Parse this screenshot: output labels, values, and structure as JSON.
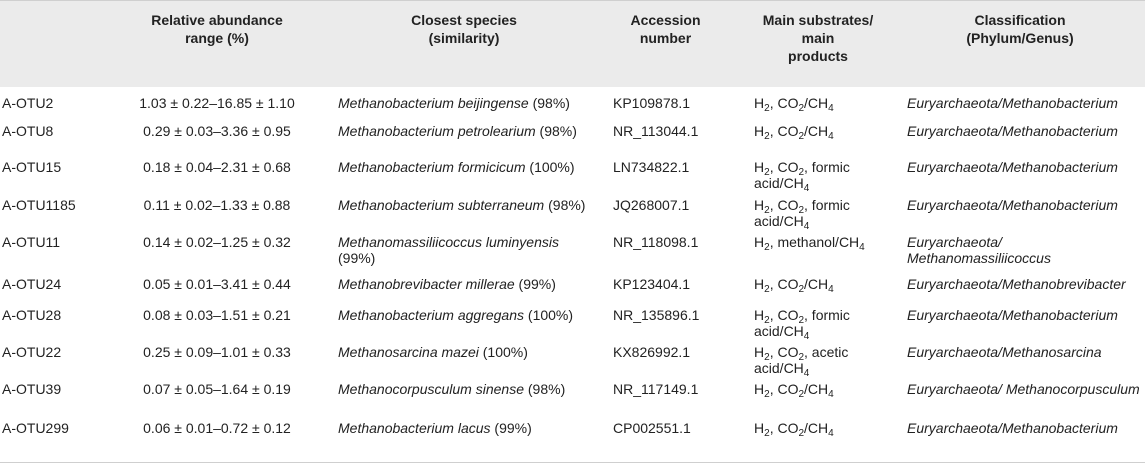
{
  "headers": [
    {
      "key": "range",
      "lines": [
        "Relative abundance",
        "range (%)"
      ]
    },
    {
      "key": "species",
      "lines": [
        "Closest species",
        "(similarity)"
      ]
    },
    {
      "key": "accession",
      "lines": [
        "Accession",
        "number"
      ]
    },
    {
      "key": "substrates",
      "lines": [
        "Main substrates/",
        "main",
        "products"
      ]
    },
    {
      "key": "classification",
      "lines": [
        "Classification",
        "(Phylum/Genus)"
      ]
    }
  ],
  "rows": [
    {
      "otu": "A-OTU2",
      "range": "1.03 ± 0.22–16.85 ± 1.10",
      "species": "Methanobacterium beijingense",
      "similarity": "(98%)",
      "accession": "KP109878.1",
      "substrates": "H₂, CO₂/CH₄",
      "classification": "Euryarchaeota/Methanobacterium"
    },
    {
      "otu": "A-OTU8",
      "range": "0.29 ± 0.03–3.36 ± 0.95",
      "species": "Methanobacterium petrolearium",
      "similarity": "(98%)",
      "accession": "NR_113044.1",
      "substrates": "H₂, CO₂/CH₄",
      "classification": "Euryarchaeota/Methanobacterium"
    },
    {
      "otu": "A-OTU15",
      "range": "0.18 ± 0.04–2.31 ± 0.68",
      "species": "Methanobacterium formicicum",
      "similarity": "(100%)",
      "accession": "LN734822.1",
      "substrates": "H₂, CO₂, formic acid/CH₄",
      "classification": "Euryarchaeota/Methanobacterium"
    },
    {
      "otu": "A-OTU1185",
      "range": "0.11 ± 0.02–1.33 ± 0.88",
      "species": "Methanobacterium subterraneum",
      "similarity": "(98%)",
      "accession": "JQ268007.1",
      "substrates": "H₂, CO₂, formic acid/CH₄",
      "classification": "Euryarchaeota/Methanobacterium"
    },
    {
      "otu": "A-OTU11",
      "range": "0.14 ± 0.02–1.25 ± 0.32",
      "species": "Methanomassiliicoccus luminyensis",
      "similarity": "(99%)",
      "accession": "NR_118098.1",
      "substrates": "H₂, methanol/CH₄",
      "classification": "Euryarchaeota/ Methanomassiliicoccus"
    },
    {
      "otu": "A-OTU24",
      "range": "0.05 ± 0.01–3.41 ± 0.44",
      "species": "Methanobrevibacter millerae",
      "similarity": "(99%)",
      "accession": "KP123404.1",
      "substrates": "H₂, CO₂/CH₄",
      "classification": "Euryarchaeota/Methanobrevibacter"
    },
    {
      "otu": "A-OTU28",
      "range": "0.08 ± 0.03–1.51 ± 0.21",
      "species": "Methanobacterium aggregans",
      "similarity": "(100%)",
      "accession": "NR_135896.1",
      "substrates": "H₂, CO₂, formic acid/CH₄",
      "classification": "Euryarchaeota/Methanobacterium"
    },
    {
      "otu": "A-OTU22",
      "range": "0.25 ± 0.09–1.01 ± 0.33",
      "species": "Methanosarcina mazei",
      "similarity": "(100%)",
      "accession": "KX826992.1",
      "substrates": "H₂, CO₂, acetic acid/CH₄",
      "classification": "Euryarchaeota/Methanosarcina"
    },
    {
      "otu": "A-OTU39",
      "range": "0.07 ± 0.05–1.64 ± 0.19",
      "species": "Methanocorpusculum sinense",
      "similarity": "(98%)",
      "accession": "NR_117149.1",
      "substrates": "H₂, CO₂/CH₄",
      "classification": "Euryarchaeota/ Methanocorpusculum"
    },
    {
      "otu": "A-OTU299",
      "range": "0.06 ± 0.01–0.72 ± 0.12",
      "species": "Methanobacterium lacus",
      "similarity": "(99%)",
      "accession": "CP002551.1",
      "substrates": "H₂, CO₂/CH₄",
      "classification": "Euryarchaeota/Methanobacterium"
    }
  ]
}
